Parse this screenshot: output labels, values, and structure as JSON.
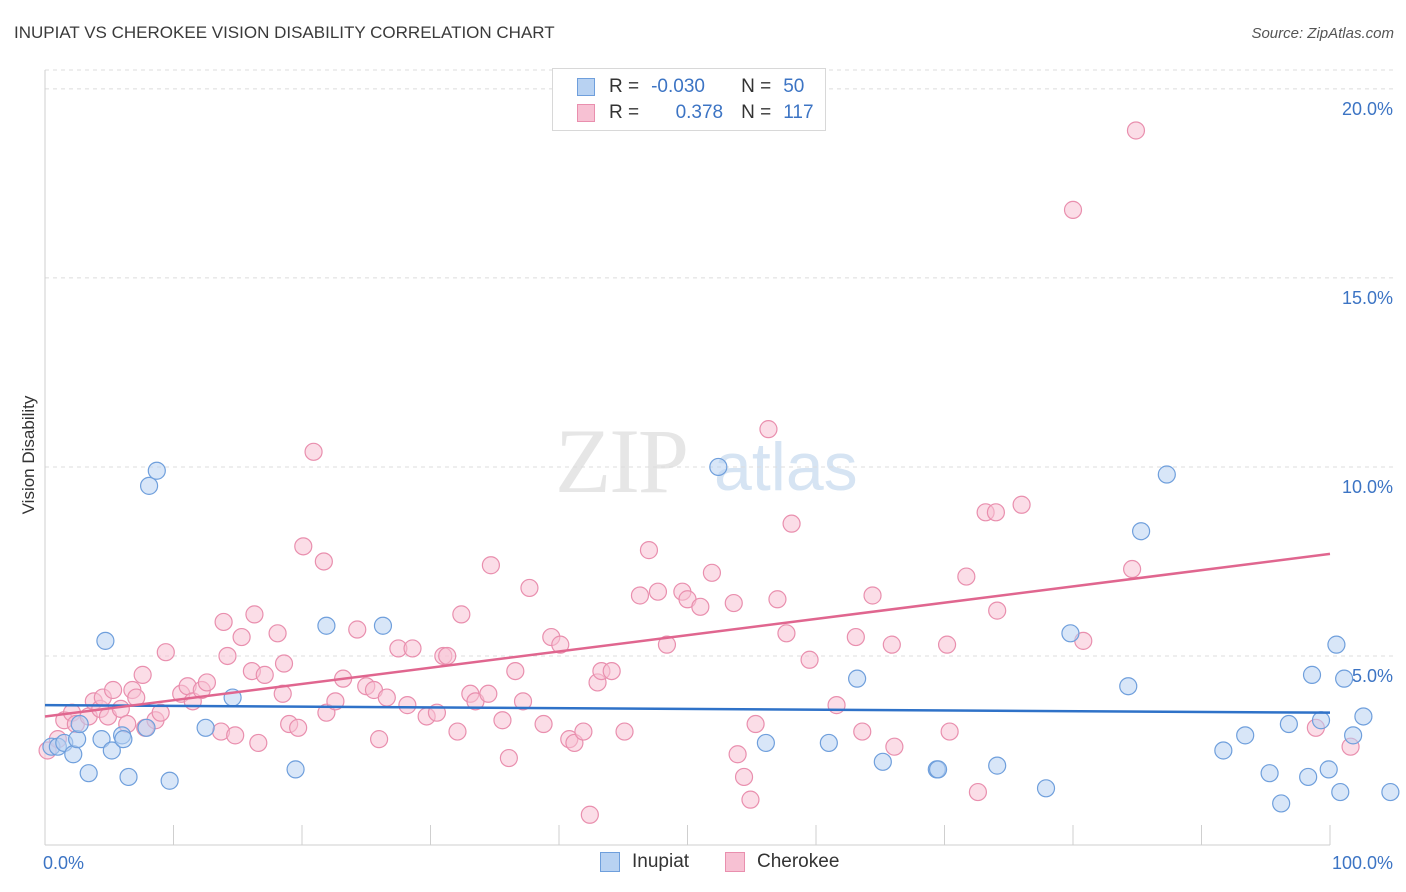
{
  "title": "INUPIAT VS CHEROKEE VISION DISABILITY CORRELATION CHART",
  "source": "Source: ZipAtlas.com",
  "watermark": {
    "zip": "ZIP",
    "atlas": "atlas"
  },
  "legend": {
    "rows": [
      {
        "r_label": "R =",
        "r_value": "-0.030",
        "n_label": "N =",
        "n_value": "50"
      },
      {
        "r_label": "R =",
        "r_value": "0.378",
        "n_label": "N =",
        "n_value": "117"
      }
    ]
  },
  "bottom_legend": [
    "Inupiat",
    "Cherokee"
  ],
  "colors": {
    "inupiat_fill": "#b8d2f2",
    "inupiat_stroke": "#6f9fdc",
    "inupiat_line": "#2f72c8",
    "cherokee_fill": "#f7c1d3",
    "cherokee_stroke": "#e98fae",
    "cherokee_line": "#e0668f",
    "tick_label": "#3c74c4",
    "grid": "#dcdcdc"
  },
  "chart_data": {
    "type": "scatter",
    "title": "INUPIAT VS CHEROKEE VISION DISABILITY CORRELATION CHART",
    "xlabel": "",
    "ylabel": "Vision Disability",
    "xlim": [
      0,
      100
    ],
    "ylim": [
      0,
      20.5
    ],
    "x_tick_labels": [
      "0.0%",
      "100.0%"
    ],
    "y_ticks": [
      5,
      10,
      15,
      20
    ],
    "y_tick_labels": [
      "5.0%",
      "10.0%",
      "15.0%",
      "20.0%"
    ],
    "grid": "horizontal dashed",
    "legend_placement": "top-center",
    "series": [
      {
        "name": "Inupiat",
        "trend": {
          "y_at_0": 3.7,
          "y_at_100": 3.5
        },
        "points": [
          [
            0.5,
            2.6
          ],
          [
            1.0,
            2.6
          ],
          [
            1.5,
            2.7
          ],
          [
            2.2,
            2.4
          ],
          [
            2.5,
            2.8
          ],
          [
            2.7,
            3.2
          ],
          [
            3.4,
            1.9
          ],
          [
            4.4,
            2.8
          ],
          [
            4.7,
            5.4
          ],
          [
            5.2,
            2.5
          ],
          [
            6.0,
            2.9
          ],
          [
            6.1,
            2.8
          ],
          [
            6.5,
            1.8
          ],
          [
            7.9,
            3.1
          ],
          [
            8.1,
            9.5
          ],
          [
            8.7,
            9.9
          ],
          [
            9.7,
            1.7
          ],
          [
            12.5,
            3.1
          ],
          [
            14.6,
            3.9
          ],
          [
            19.5,
            2.0
          ],
          [
            21.9,
            5.8
          ],
          [
            26.3,
            5.8
          ],
          [
            52.4,
            10.0
          ],
          [
            56.1,
            2.7
          ],
          [
            61.0,
            2.7
          ],
          [
            63.2,
            4.4
          ],
          [
            65.2,
            2.2
          ],
          [
            69.4,
            2.0
          ],
          [
            69.5,
            2.0
          ],
          [
            74.1,
            2.1
          ],
          [
            77.9,
            1.5
          ],
          [
            79.8,
            5.6
          ],
          [
            84.3,
            4.2
          ],
          [
            85.3,
            8.3
          ],
          [
            87.3,
            9.8
          ],
          [
            91.7,
            2.5
          ],
          [
            93.4,
            2.9
          ],
          [
            95.3,
            1.9
          ],
          [
            96.2,
            1.1
          ],
          [
            96.8,
            3.2
          ],
          [
            98.3,
            1.8
          ],
          [
            98.6,
            4.5
          ],
          [
            99.3,
            3.3
          ],
          [
            99.9,
            2.0
          ],
          [
            100.5,
            5.3
          ],
          [
            100.8,
            1.4
          ],
          [
            101.1,
            4.4
          ],
          [
            101.8,
            2.9
          ],
          [
            102.6,
            3.4
          ],
          [
            104.7,
            1.4
          ]
        ]
      },
      {
        "name": "Cherokee",
        "trend": {
          "y_at_0": 3.4,
          "y_at_100": 7.7
        },
        "points": [
          [
            0.2,
            2.5
          ],
          [
            1.0,
            2.8
          ],
          [
            1.5,
            3.3
          ],
          [
            2.1,
            3.5
          ],
          [
            2.4,
            3.2
          ],
          [
            3.4,
            3.4
          ],
          [
            3.8,
            3.8
          ],
          [
            4.3,
            3.6
          ],
          [
            4.5,
            3.9
          ],
          [
            4.9,
            3.4
          ],
          [
            5.3,
            4.1
          ],
          [
            5.9,
            3.6
          ],
          [
            6.4,
            3.2
          ],
          [
            6.8,
            4.1
          ],
          [
            7.1,
            3.9
          ],
          [
            7.6,
            4.5
          ],
          [
            7.8,
            3.1
          ],
          [
            8.6,
            3.3
          ],
          [
            9.0,
            3.5
          ],
          [
            9.4,
            5.1
          ],
          [
            10.6,
            4.0
          ],
          [
            11.1,
            4.2
          ],
          [
            11.5,
            3.8
          ],
          [
            12.2,
            4.1
          ],
          [
            12.6,
            4.3
          ],
          [
            13.7,
            3.0
          ],
          [
            13.9,
            5.9
          ],
          [
            14.2,
            5.0
          ],
          [
            14.8,
            2.9
          ],
          [
            15.3,
            5.5
          ],
          [
            16.1,
            4.6
          ],
          [
            16.3,
            6.1
          ],
          [
            16.6,
            2.7
          ],
          [
            17.1,
            4.5
          ],
          [
            18.1,
            5.6
          ],
          [
            18.5,
            4.0
          ],
          [
            18.6,
            4.8
          ],
          [
            19.0,
            3.2
          ],
          [
            19.7,
            3.1
          ],
          [
            20.1,
            7.9
          ],
          [
            20.9,
            10.4
          ],
          [
            21.7,
            7.5
          ],
          [
            21.9,
            3.5
          ],
          [
            22.6,
            3.8
          ],
          [
            23.2,
            4.4
          ],
          [
            24.3,
            5.7
          ],
          [
            25.0,
            4.2
          ],
          [
            25.6,
            4.1
          ],
          [
            26.0,
            2.8
          ],
          [
            26.6,
            3.9
          ],
          [
            27.5,
            5.2
          ],
          [
            28.2,
            3.7
          ],
          [
            28.6,
            5.2
          ],
          [
            29.7,
            3.4
          ],
          [
            30.5,
            3.5
          ],
          [
            31.0,
            5.0
          ],
          [
            31.3,
            5.0
          ],
          [
            32.1,
            3.0
          ],
          [
            32.4,
            6.1
          ],
          [
            33.1,
            4.0
          ],
          [
            33.5,
            3.8
          ],
          [
            34.5,
            4.0
          ],
          [
            34.7,
            7.4
          ],
          [
            35.6,
            3.3
          ],
          [
            36.1,
            2.3
          ],
          [
            36.6,
            4.6
          ],
          [
            37.2,
            3.8
          ],
          [
            37.7,
            6.8
          ],
          [
            38.8,
            3.2
          ],
          [
            39.4,
            5.5
          ],
          [
            40.1,
            5.3
          ],
          [
            40.8,
            2.8
          ],
          [
            41.2,
            2.7
          ],
          [
            41.9,
            3.0
          ],
          [
            42.4,
            0.8
          ],
          [
            43.0,
            4.3
          ],
          [
            43.3,
            4.6
          ],
          [
            44.1,
            4.6
          ],
          [
            45.1,
            3.0
          ],
          [
            46.3,
            6.6
          ],
          [
            47.0,
            7.8
          ],
          [
            47.7,
            6.7
          ],
          [
            48.4,
            5.3
          ],
          [
            49.6,
            6.7
          ],
          [
            50.0,
            6.5
          ],
          [
            51.0,
            6.3
          ],
          [
            51.9,
            7.2
          ],
          [
            53.6,
            6.4
          ],
          [
            53.9,
            2.4
          ],
          [
            54.4,
            1.8
          ],
          [
            54.9,
            1.2
          ],
          [
            55.3,
            3.2
          ],
          [
            56.3,
            11.0
          ],
          [
            57.0,
            6.5
          ],
          [
            57.7,
            5.6
          ],
          [
            58.1,
            8.5
          ],
          [
            59.5,
            4.9
          ],
          [
            61.6,
            3.7
          ],
          [
            63.1,
            5.5
          ],
          [
            63.6,
            3.0
          ],
          [
            64.4,
            6.6
          ],
          [
            65.9,
            5.3
          ],
          [
            66.1,
            2.6
          ],
          [
            70.2,
            5.3
          ],
          [
            70.4,
            3.0
          ],
          [
            71.7,
            7.1
          ],
          [
            72.6,
            1.4
          ],
          [
            73.2,
            8.8
          ],
          [
            74.0,
            8.8
          ],
          [
            74.1,
            6.2
          ],
          [
            76.0,
            9.0
          ],
          [
            80.0,
            16.8
          ],
          [
            80.8,
            5.4
          ],
          [
            84.6,
            7.3
          ],
          [
            84.9,
            18.9
          ],
          [
            98.9,
            3.1
          ],
          [
            101.6,
            2.6
          ]
        ]
      }
    ]
  }
}
